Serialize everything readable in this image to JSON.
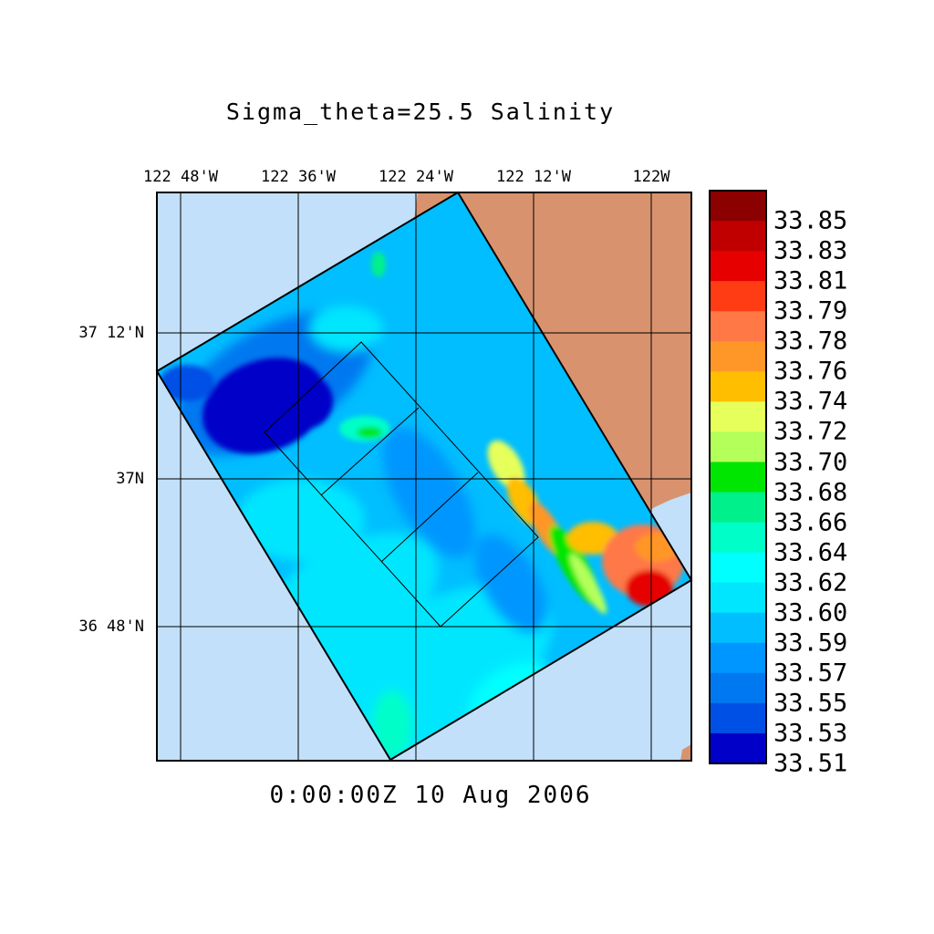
{
  "title": "Sigma_theta=25.5 Salinity",
  "time_label": "0:00:00Z  10 Aug 2006",
  "lon_labels": [
    "122 48'W",
    "122 36'W",
    "122 24'W",
    "122 12'W",
    "122W"
  ],
  "lat_labels": [
    "37 12'N",
    "37N",
    "36 48'N"
  ],
  "colorbar": {
    "labels": [
      "33.85",
      "33.83",
      "33.81",
      "33.79",
      "33.78",
      "33.76",
      "33.74",
      "33.72",
      "33.70",
      "33.68",
      "33.66",
      "33.64",
      "33.62",
      "33.60",
      "33.59",
      "33.57",
      "33.55",
      "33.53",
      "33.51"
    ],
    "colors": [
      "#8b0000",
      "#c00000",
      "#e60000",
      "#ff3c14",
      "#ff7846",
      "#ff9628",
      "#ffbe00",
      "#e6ff5a",
      "#b4ff5a",
      "#00e600",
      "#00f08c",
      "#00ffc8",
      "#00ffff",
      "#00e6ff",
      "#00beff",
      "#0096ff",
      "#0078f0",
      "#0050e6",
      "#0000c8"
    ]
  },
  "colors": {
    "ocean_background": "#c2e0fa",
    "land": "#d9926e",
    "domain_base": "#00beff"
  }
}
